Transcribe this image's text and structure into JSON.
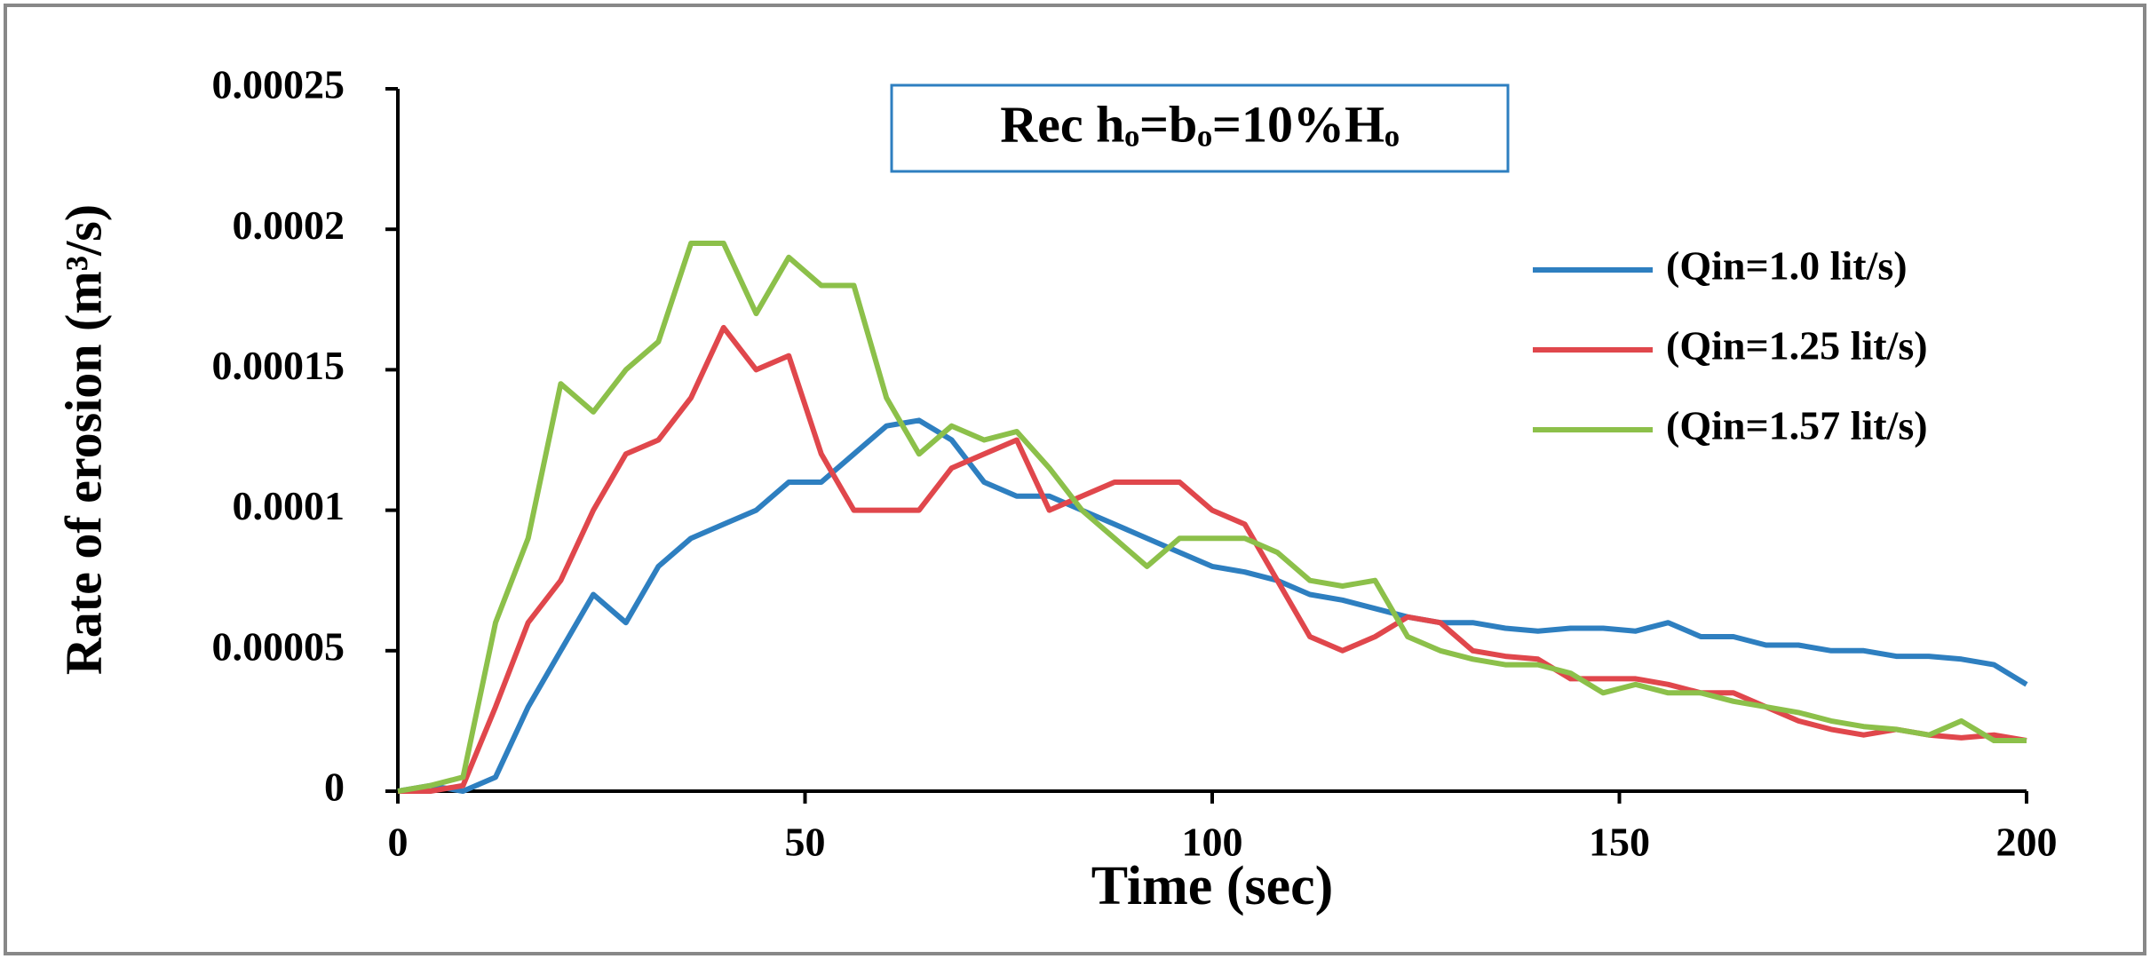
{
  "chart_data": {
    "type": "line",
    "annotation": "Rec hₒ=bₒ=10%Hₒ",
    "x_label": "Time (sec)",
    "y_label": "Rate of erosion (m³/s)",
    "x": [
      0,
      4,
      8,
      12,
      16,
      20,
      24,
      28,
      32,
      36,
      40,
      44,
      48,
      52,
      56,
      60,
      64,
      68,
      72,
      76,
      80,
      84,
      88,
      92,
      96,
      100,
      104,
      108,
      112,
      116,
      120,
      124,
      128,
      132,
      136,
      140,
      144,
      148,
      152,
      156,
      160,
      164,
      168,
      172,
      176,
      180,
      184,
      188,
      192,
      196,
      200
    ],
    "series": [
      {
        "name": "(Qin=1.0 lit/s)",
        "color": "#2e7fc0",
        "values": [
          0,
          2e-06,
          0,
          5e-06,
          3e-05,
          5e-05,
          7e-05,
          6e-05,
          8e-05,
          9e-05,
          9.5e-05,
          0.0001,
          0.00011,
          0.00011,
          0.00012,
          0.00013,
          0.000132,
          0.000125,
          0.00011,
          0.000105,
          0.000105,
          0.0001,
          9.5e-05,
          9e-05,
          8.5e-05,
          8e-05,
          7.8e-05,
          7.5e-05,
          7e-05,
          6.8e-05,
          6.5e-05,
          6.2e-05,
          6e-05,
          6e-05,
          5.8e-05,
          5.7e-05,
          5.8e-05,
          5.8e-05,
          5.7e-05,
          6e-05,
          5.5e-05,
          5.5e-05,
          5.2e-05,
          5.2e-05,
          5e-05,
          5e-05,
          4.8e-05,
          4.8e-05,
          4.7e-05,
          4.5e-05,
          3.8e-05
        ]
      },
      {
        "name": "(Qin=1.25 lit/s)",
        "color": "#e0474c",
        "values": [
          0,
          0,
          2e-06,
          3e-05,
          6e-05,
          7.5e-05,
          0.0001,
          0.00012,
          0.000125,
          0.00014,
          0.000165,
          0.00015,
          0.000155,
          0.00012,
          0.0001,
          0.0001,
          0.0001,
          0.000115,
          0.00012,
          0.000125,
          0.0001,
          0.000105,
          0.00011,
          0.00011,
          0.00011,
          0.0001,
          9.5e-05,
          7.5e-05,
          5.5e-05,
          5e-05,
          5.5e-05,
          6.2e-05,
          6e-05,
          5e-05,
          4.8e-05,
          4.7e-05,
          4e-05,
          4e-05,
          4e-05,
          3.8e-05,
          3.5e-05,
          3.5e-05,
          3e-05,
          2.5e-05,
          2.2e-05,
          2e-05,
          2.2e-05,
          2e-05,
          1.9e-05,
          2e-05,
          1.8e-05
        ]
      },
      {
        "name": "(Qin=1.57 lit/s)",
        "color": "#8cc04a",
        "values": [
          0,
          2e-06,
          5e-06,
          6e-05,
          9e-05,
          0.000145,
          0.000135,
          0.00015,
          0.00016,
          0.000195,
          0.000195,
          0.00017,
          0.00019,
          0.00018,
          0.00018,
          0.00014,
          0.00012,
          0.00013,
          0.000125,
          0.000128,
          0.000115,
          0.0001,
          9e-05,
          8e-05,
          9e-05,
          9e-05,
          9e-05,
          8.5e-05,
          7.5e-05,
          7.3e-05,
          7.5e-05,
          5.5e-05,
          5e-05,
          4.7e-05,
          4.5e-05,
          4.5e-05,
          4.2e-05,
          3.5e-05,
          3.8e-05,
          3.5e-05,
          3.5e-05,
          3.2e-05,
          3e-05,
          2.8e-05,
          2.5e-05,
          2.3e-05,
          2.2e-05,
          2e-05,
          2.5e-05,
          1.8e-05,
          1.8e-05
        ]
      }
    ],
    "xlim": [
      0,
      200
    ],
    "xticks": [
      0,
      50,
      100,
      150,
      200
    ],
    "ylim": [
      0,
      0.00025
    ],
    "yticks": [
      0,
      5e-05,
      0.0001,
      0.00015,
      0.0002,
      0.00025
    ],
    "grid": false,
    "legend": "right"
  }
}
